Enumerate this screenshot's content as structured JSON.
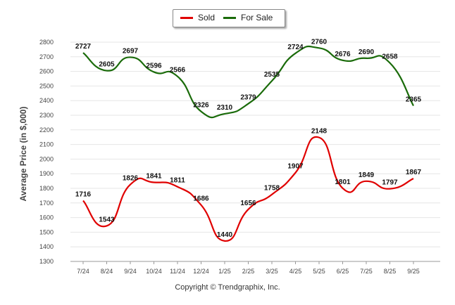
{
  "chart_data": {
    "type": "line",
    "categories": [
      "7/24",
      "8/24",
      "9/24",
      "10/24",
      "11/24",
      "12/24",
      "1/25",
      "2/25",
      "3/25",
      "4/25",
      "5/25",
      "6/25",
      "7/25",
      "8/25",
      "9/25"
    ],
    "series": [
      {
        "name": "Sold",
        "color": "#e00000",
        "values": [
          1716,
          1543,
          1826,
          1841,
          1811,
          1686,
          1440,
          1656,
          1758,
          1907,
          2148,
          1801,
          1849,
          1797,
          1867
        ]
      },
      {
        "name": "For Sale",
        "color": "#1a6b0a",
        "values": [
          2727,
          2605,
          2697,
          2596,
          2566,
          2326,
          2310,
          2379,
          2535,
          2724,
          2760,
          2676,
          2690,
          2658,
          2365
        ]
      }
    ],
    "ylabel": "Average Price (in $,000)",
    "xlabel": "",
    "ylim": [
      1300,
      2800
    ],
    "yticks": [
      1300,
      1400,
      1500,
      1600,
      1700,
      1800,
      1900,
      2000,
      2100,
      2200,
      2300,
      2400,
      2500,
      2600,
      2700,
      2800
    ],
    "grid": true,
    "legend": "top-center"
  },
  "footer": {
    "copyright": "Copyright © Trendgraphix, Inc."
  }
}
